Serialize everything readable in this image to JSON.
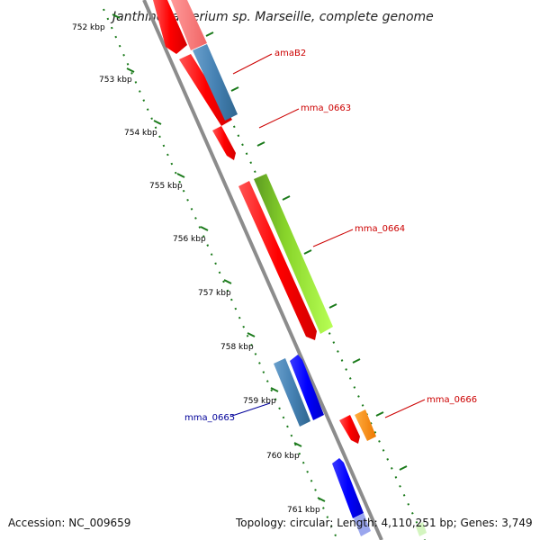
{
  "title": "Janthinobacterium sp. Marseille, complete genome",
  "scale_ticks": [
    {
      "label": "752 kbp"
    },
    {
      "label": "753 kbp"
    },
    {
      "label": "754 kbp"
    },
    {
      "label": "755 kbp"
    },
    {
      "label": "756 kbp"
    },
    {
      "label": "757 kbp"
    },
    {
      "label": "758 kbp"
    },
    {
      "label": "759 kbp"
    },
    {
      "label": "760 kbp"
    },
    {
      "label": "761 kbp"
    }
  ],
  "gene_labels": [
    {
      "name": "amaB2",
      "color": "#cc0000"
    },
    {
      "name": "mma_0663",
      "color": "#cc0000"
    },
    {
      "name": "mma_0664",
      "color": "#cc0000"
    },
    {
      "name": "mma_0665",
      "color": "#000099"
    },
    {
      "name": "mma_0666",
      "color": "#cc0000"
    }
  ],
  "colors": {
    "backbone": "#8c8c8c",
    "tick": "#1a7a1a",
    "red": "#ff0000",
    "blue": "#0000ff",
    "steel_blue": "#4682b4",
    "green": "#99ff33",
    "orange": "#ff8c00"
  },
  "footer": {
    "accession": "Accession: NC_009659",
    "summary": "Topology: circular; Length: 4,110,251 bp; Genes: 3,749"
  }
}
